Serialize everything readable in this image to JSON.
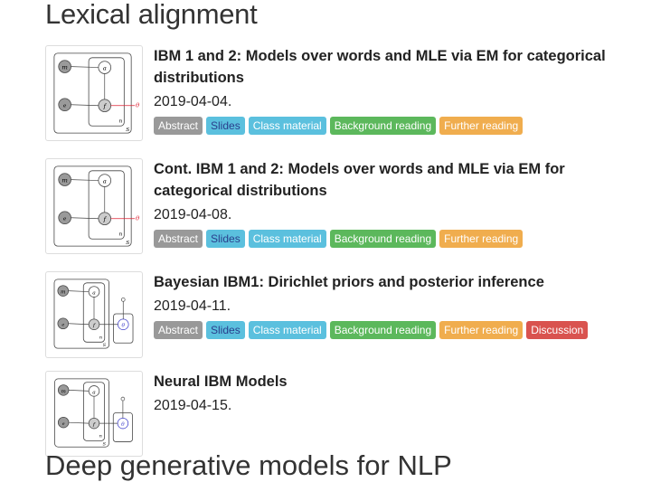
{
  "section": {
    "title": "Lexical alignment",
    "next_title_partial": "Deep generative models for NLP"
  },
  "lectures": [
    {
      "title": "IBM 1 and 2: Models over words and MLE via EM for categorical distributions",
      "date": "2019-04-04.",
      "labels": [
        "Abstract",
        "Slides",
        "Class material",
        "Background reading",
        "Further reading"
      ]
    },
    {
      "title": "Cont. IBM 1 and 2: Models over words and MLE via EM for categorical distributions",
      "date": "2019-04-08.",
      "labels": [
        "Abstract",
        "Slides",
        "Class material",
        "Background reading",
        "Further reading"
      ]
    },
    {
      "title": "Bayesian IBM1: Dirichlet priors and posterior inference",
      "date": "2019-04-11.",
      "labels": [
        "Abstract",
        "Slides",
        "Class material",
        "Background reading",
        "Further reading",
        "Discussion"
      ]
    },
    {
      "title": "Neural IBM Models",
      "date": "2019-04-15.",
      "labels": []
    }
  ],
  "graph_symbols": {
    "m": "m",
    "e": "e",
    "a": "a",
    "f": "f",
    "n": "n",
    "S": "S",
    "theta": "θ"
  },
  "colors": {
    "abstract": "#999999",
    "slides": "#5bc0de",
    "class_material": "#5bc0de",
    "background_reading": "#5cb85c",
    "further_reading": "#f0ad4e",
    "discussion": "#d9534f"
  }
}
